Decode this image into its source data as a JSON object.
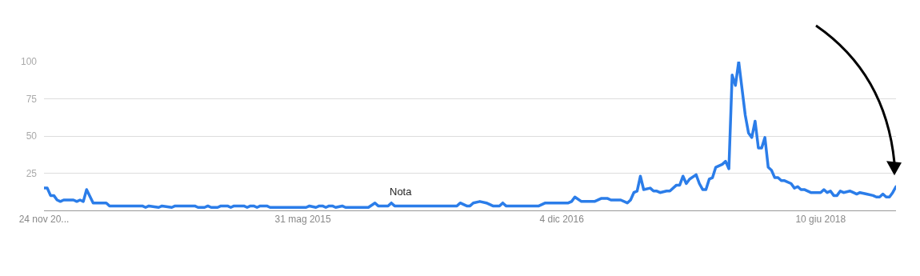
{
  "chart_data": {
    "type": "line",
    "grid": "y",
    "marker": "none",
    "line_style": "solid",
    "xlim": [
      "2013-11-24",
      "2018-11-18"
    ],
    "xticks": [
      {
        "value": "2013-11-24",
        "label": "24 nov 20..."
      },
      {
        "value": "2015-05-31",
        "label": "31 mag 2015"
      },
      {
        "value": "2016-12-04",
        "label": "4 dic 2016"
      },
      {
        "value": "2018-06-10",
        "label": "10 giu 2018"
      }
    ],
    "ylim": [
      0,
      100
    ],
    "yticks": [
      25,
      50,
      75,
      100
    ],
    "annotations": [
      {
        "text": "Nota",
        "x": "2015-12-27",
        "y": 0
      }
    ],
    "series": [
      {
        "color": "#2b7de9",
        "x": [
          "2013-11-24",
          "2013-12-01",
          "2013-12-08",
          "2013-12-15",
          "2013-12-22",
          "2013-12-29",
          "2014-01-05",
          "2014-01-26",
          "2014-02-02",
          "2014-02-09",
          "2014-02-16",
          "2014-02-23",
          "2014-03-09",
          "2014-03-16",
          "2014-04-06",
          "2014-04-13",
          "2014-06-22",
          "2014-06-29",
          "2014-07-06",
          "2014-07-27",
          "2014-08-03",
          "2014-08-24",
          "2014-08-31",
          "2014-10-12",
          "2014-10-19",
          "2014-11-02",
          "2014-11-09",
          "2014-11-16",
          "2014-11-30",
          "2014-12-07",
          "2014-12-21",
          "2014-12-28",
          "2015-01-04",
          "2015-01-25",
          "2015-02-01",
          "2015-02-08",
          "2015-02-15",
          "2015-02-22",
          "2015-03-01",
          "2015-03-15",
          "2015-03-22",
          "2015-06-07",
          "2015-06-14",
          "2015-06-28",
          "2015-07-05",
          "2015-07-12",
          "2015-07-19",
          "2015-07-26",
          "2015-08-02",
          "2015-08-09",
          "2015-08-23",
          "2015-08-30",
          "2015-10-18",
          "2015-11-01",
          "2015-11-08",
          "2015-11-29",
          "2015-12-06",
          "2015-12-13",
          "2016-04-24",
          "2016-05-01",
          "2016-05-15",
          "2016-05-22",
          "2016-05-29",
          "2016-06-12",
          "2016-06-26",
          "2016-07-10",
          "2016-07-24",
          "2016-07-31",
          "2016-08-07",
          "2016-10-16",
          "2016-10-30",
          "2016-12-18",
          "2016-12-25",
          "2017-01-01",
          "2017-01-15",
          "2017-02-12",
          "2017-02-26",
          "2017-03-12",
          "2017-03-19",
          "2017-04-09",
          "2017-04-23",
          "2017-04-30",
          "2017-05-07",
          "2017-05-14",
          "2017-05-21",
          "2017-05-28",
          "2017-06-11",
          "2017-06-18",
          "2017-06-25",
          "2017-07-02",
          "2017-07-16",
          "2017-07-23",
          "2017-08-06",
          "2017-08-13",
          "2017-08-20",
          "2017-08-27",
          "2017-09-03",
          "2017-09-17",
          "2017-09-24",
          "2017-10-01",
          "2017-10-08",
          "2017-10-15",
          "2017-10-22",
          "2017-10-29",
          "2017-11-12",
          "2017-11-19",
          "2017-11-26",
          "2017-12-03",
          "2017-12-10",
          "2017-12-17",
          "2017-12-31",
          "2018-01-07",
          "2018-01-14",
          "2018-01-21",
          "2018-01-28",
          "2018-02-04",
          "2018-02-11",
          "2018-02-18",
          "2018-02-25",
          "2018-03-04",
          "2018-03-11",
          "2018-03-18",
          "2018-03-25",
          "2018-04-08",
          "2018-04-15",
          "2018-04-22",
          "2018-04-29",
          "2018-05-06",
          "2018-05-20",
          "2018-06-03",
          "2018-06-10",
          "2018-06-17",
          "2018-06-24",
          "2018-07-01",
          "2018-07-08",
          "2018-07-15",
          "2018-07-22",
          "2018-07-29",
          "2018-08-12",
          "2018-08-19",
          "2018-08-26",
          "2018-09-02",
          "2018-09-16",
          "2018-09-30",
          "2018-10-07",
          "2018-10-14",
          "2018-10-21",
          "2018-10-28",
          "2018-11-04",
          "2018-11-11",
          "2018-11-18"
        ],
        "values": [
          15,
          15,
          10,
          10,
          7,
          6,
          7,
          7,
          6,
          7,
          6,
          14,
          5,
          5,
          5,
          3,
          3,
          2,
          3,
          2,
          3,
          2,
          3,
          3,
          2,
          2,
          3,
          2,
          2,
          3,
          3,
          2,
          3,
          3,
          2,
          3,
          3,
          2,
          3,
          3,
          2,
          2,
          3,
          2,
          3,
          3,
          2,
          3,
          3,
          2,
          3,
          2,
          2,
          5,
          3,
          3,
          5,
          3,
          3,
          5,
          3,
          3,
          5,
          6,
          5,
          3,
          3,
          5,
          3,
          3,
          5,
          5,
          6,
          9,
          6,
          6,
          8,
          8,
          7,
          7,
          5,
          7,
          12,
          13,
          23,
          14,
          15,
          13,
          13,
          12,
          13,
          13,
          17,
          17,
          23,
          18,
          21,
          24,
          18,
          14,
          14,
          21,
          22,
          29,
          31,
          33,
          28,
          91,
          84,
          100,
          64,
          52,
          49,
          60,
          42,
          42,
          49,
          29,
          27,
          22,
          22,
          20,
          20,
          18,
          15,
          16,
          14,
          14,
          12,
          12,
          12,
          14,
          12,
          13,
          10,
          10,
          13,
          12,
          13,
          12,
          11,
          12,
          11,
          10,
          9,
          9,
          11,
          9,
          9,
          12,
          16
        ]
      }
    ]
  }
}
